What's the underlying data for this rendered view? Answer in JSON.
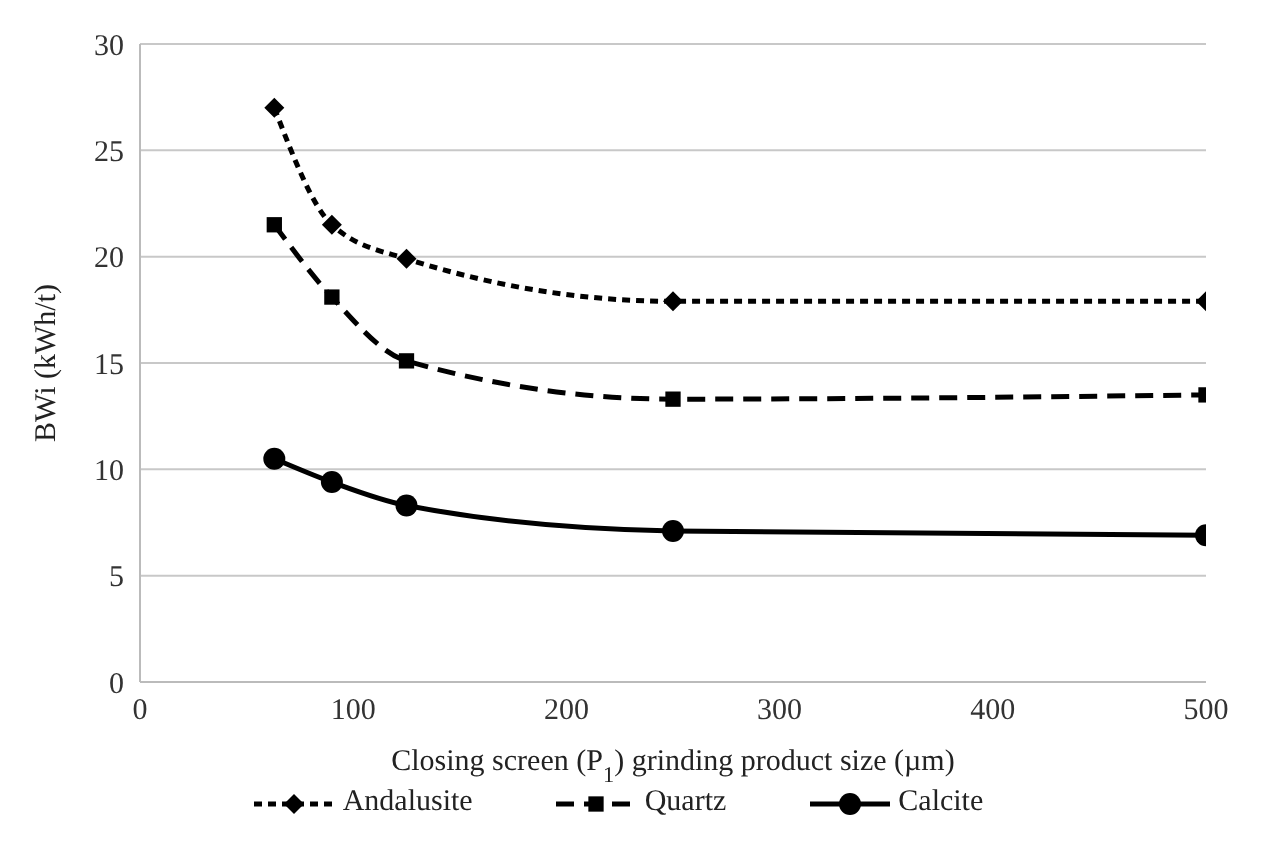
{
  "chart_data": {
    "type": "line",
    "xlabel": "Closing screen (P$_{1}$) grinding product size (µm)",
    "ylabel": "BWi (kWh/t)",
    "x": [
      63,
      90,
      125,
      250,
      500
    ],
    "series": [
      {
        "name": "Andalusite",
        "color": "#000000",
        "values": [
          27.0,
          21.5,
          19.9,
          17.9,
          17.9
        ],
        "marker": "diamond",
        "line_style": "dotted"
      },
      {
        "name": "Quartz",
        "color": "#000000",
        "values": [
          21.5,
          18.1,
          15.1,
          13.3,
          13.5
        ],
        "marker": "square",
        "line_style": "dashed"
      },
      {
        "name": "Calcite",
        "color": "#000000",
        "values": [
          10.5,
          9.4,
          8.3,
          7.1,
          6.9
        ],
        "marker": "circle",
        "line_style": "solid"
      }
    ],
    "xlim": [
      0,
      500
    ],
    "xticks": [
      0,
      100,
      200,
      300,
      400,
      500
    ],
    "ylim": [
      0,
      30
    ],
    "yticks": [
      0,
      5,
      10,
      15,
      20,
      25,
      30
    ],
    "grid": "y",
    "legend": "bottom"
  }
}
